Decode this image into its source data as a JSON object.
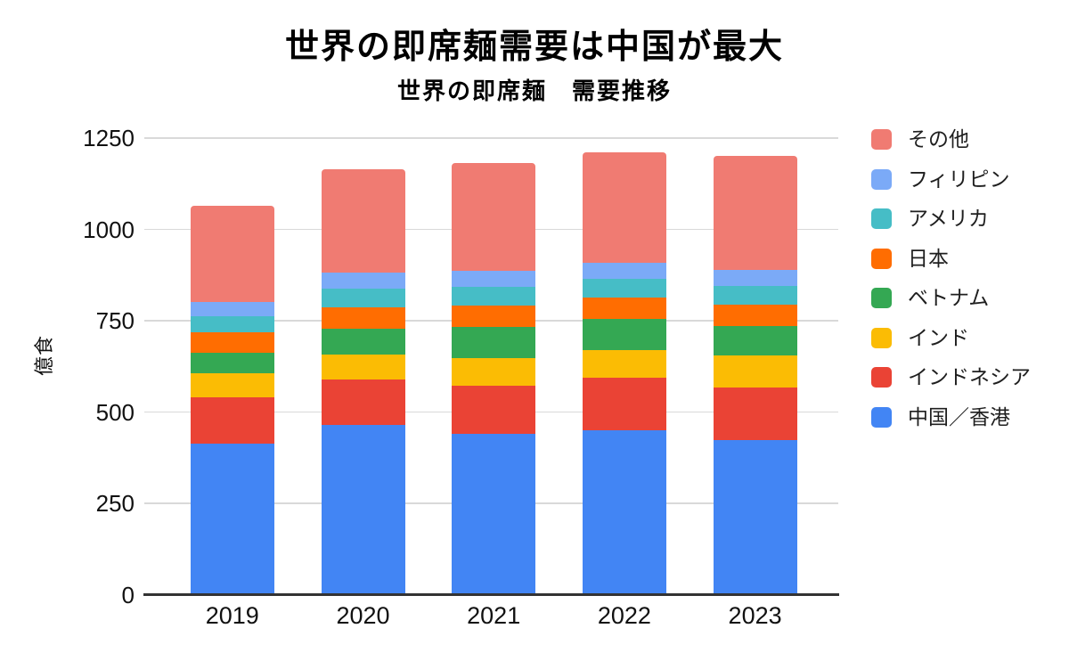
{
  "header": {
    "title": "世界の即席麺需要は中国が最大",
    "subtitle": "世界の即席麺　需要推移"
  },
  "chart_data": {
    "type": "bar",
    "stacked": true,
    "title": "世界の即席麺需要は中国が最大",
    "subtitle": "世界の即席麺　需要推移",
    "ylabel": "億食",
    "xlabel": "",
    "ylim": [
      0,
      1250
    ],
    "yticks": [
      0,
      250,
      500,
      750,
      1000,
      1250
    ],
    "grid": true,
    "legend_position": "right",
    "legend_order": "top of stack listed first",
    "categories": [
      "2019",
      "2020",
      "2021",
      "2022",
      "2023"
    ],
    "series": [
      {
        "name": "中国／香港",
        "color": "#4285F4",
        "values": [
          414.5,
          463.6,
          439.9,
          450.7,
          422.1
        ]
      },
      {
        "name": "インドネシア",
        "color": "#EA4335",
        "values": [
          125.2,
          126.4,
          132.7,
          142.6,
          145.4
        ]
      },
      {
        "name": "インド",
        "color": "#FBBC04",
        "values": [
          67.3,
          67.3,
          75.6,
          75.8,
          86.8
        ]
      },
      {
        "name": "ベトナム",
        "color": "#34A853",
        "values": [
          54.4,
          70.3,
          85.6,
          84.8,
          81.3
        ]
      },
      {
        "name": "日本",
        "color": "#FF6D01",
        "values": [
          56.3,
          59.7,
          58.5,
          59.8,
          58.4
        ]
      },
      {
        "name": "アメリカ",
        "color": "#46BDC6",
        "values": [
          44.0,
          50.5,
          49.8,
          51.5,
          51.0
        ]
      },
      {
        "name": "フィリピン",
        "color": "#7BAAF7",
        "values": [
          38.5,
          44.7,
          44.4,
          42.9,
          43.9
        ]
      },
      {
        "name": "その他",
        "color": "#F07B72",
        "values": [
          264.0,
          283.1,
          295.3,
          303.9,
          313.4
        ]
      }
    ],
    "totals": [
      1064.2,
      1165.6,
      1181.8,
      1212.0,
      1202.3
    ]
  },
  "colors": {
    "background": "#ffffff",
    "gridline": "#d9d9d9",
    "axis_line": "#333333",
    "tick_text": "#111111",
    "legend_text": "#1f1f1f",
    "title_text": "#000000"
  }
}
